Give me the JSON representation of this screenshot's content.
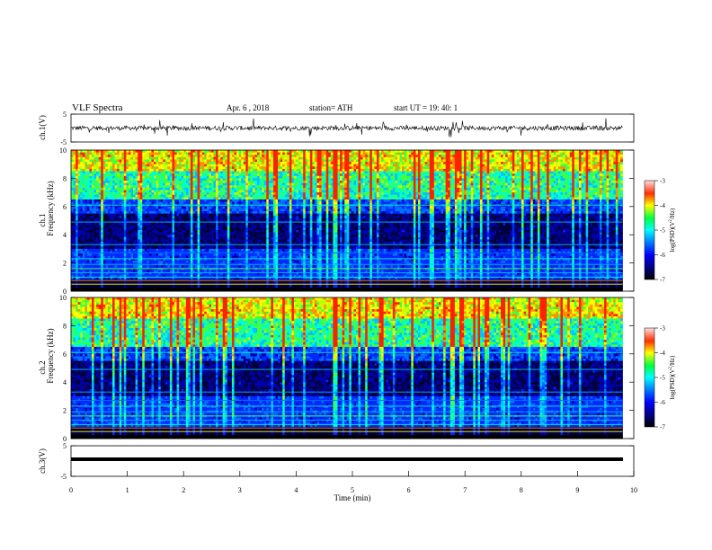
{
  "header": {
    "title": "VLF  Spectra",
    "date": "Apr. 6 , 2018",
    "station": "station= ATH",
    "start": "start  UT  =    19: 40: 1"
  },
  "colors": {
    "spectrogram_scale": [
      "#000000",
      "#000040",
      "#0000c0",
      "#0050ff",
      "#00b4ff",
      "#00ffc8",
      "#50ff00",
      "#ffff00",
      "#ff8000",
      "#ff0000",
      "#ffc0c0"
    ]
  },
  "chart_data": [
    {
      "type": "line",
      "name": "ch1-waveform",
      "ylabel": "ch.1(V)",
      "ytick_labels": [
        "5",
        "-5"
      ],
      "ylim": [
        -5,
        5
      ],
      "xlim": [
        0,
        10
      ],
      "baseline": 0,
      "data_extent_min": 9.8
    },
    {
      "type": "heatmap",
      "name": "ch1-spectrogram",
      "ylabel": "ch.1\nFrequency  (kHz)",
      "ytick_labels": [
        "10",
        "8",
        "6",
        "4",
        "2",
        "0"
      ],
      "ylim": [
        0,
        10
      ],
      "xlim": [
        0,
        10
      ],
      "data_extent_min": 9.8,
      "colorbar": {
        "label": "log(PSD)(V²/Hz)",
        "ticks": [
          "-3",
          "-4",
          "-5",
          "-6",
          "-7"
        ],
        "range": [
          -7,
          -3
        ]
      }
    },
    {
      "type": "heatmap",
      "name": "ch2-spectrogram",
      "ylabel": "ch.2\nFrequency  (kHz)",
      "ytick_labels": [
        "10",
        "8",
        "6",
        "4",
        "2",
        "0"
      ],
      "ylim": [
        0,
        10
      ],
      "xlim": [
        0,
        10
      ],
      "data_extent_min": 9.8,
      "colorbar": {
        "label": "log(PSD)(V²/Hz)",
        "ticks": [
          "-3",
          "-4",
          "-5",
          "-6",
          "-7"
        ],
        "range": [
          -7,
          -3
        ]
      }
    },
    {
      "type": "line",
      "name": "ch3-waveform",
      "ylabel": "ch.3(V)",
      "ytick_labels": [
        "5",
        "-5"
      ],
      "ylim": [
        -5,
        5
      ],
      "xlim": [
        0,
        10
      ],
      "baseline": 0,
      "data_extent_min": 9.8,
      "xlabel": "Time  (min)",
      "xtick_labels": [
        "0",
        "1",
        "2",
        "3",
        "4",
        "5",
        "6",
        "7",
        "8",
        "9",
        "10"
      ]
    }
  ]
}
